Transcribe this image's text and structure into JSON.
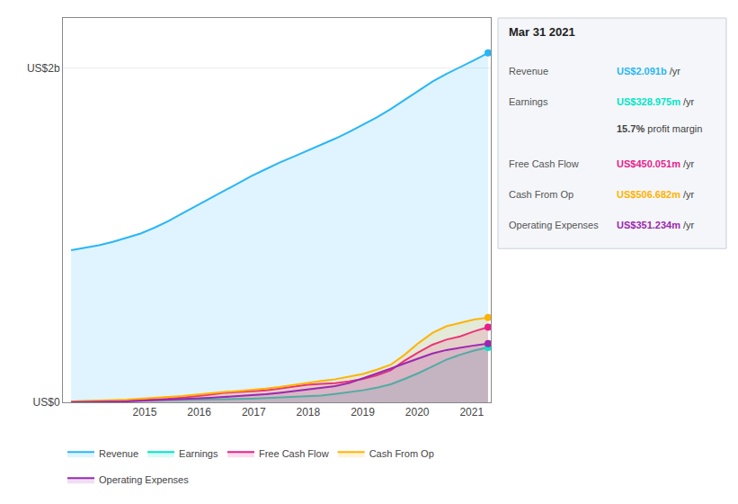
{
  "chart_data": {
    "type": "area",
    "title": "Mar 31 2021",
    "x": [
      2013.65,
      2013.905,
      2014.16,
      2014.415,
      2014.67,
      2014.925,
      2015.18,
      2015.435,
      2015.69,
      2015.945,
      2016.2,
      2016.455,
      2016.71,
      2016.965,
      2017.22,
      2017.475,
      2017.73,
      2017.985,
      2018.24,
      2018.495,
      2018.75,
      2019.005,
      2019.26,
      2019.515,
      2019.77,
      2020.025,
      2020.28,
      2020.535,
      2020.79,
      2021.045,
      2021.3
    ],
    "series": [
      {
        "name": "Revenue",
        "color": "#29b6f6",
        "values": [
          910,
          925,
          940,
          960,
          985,
          1010,
          1045,
          1085,
          1130,
          1175,
          1220,
          1265,
          1310,
          1355,
          1395,
          1435,
          1470,
          1505,
          1540,
          1578,
          1618,
          1660,
          1705,
          1755,
          1810,
          1865,
          1920,
          1965,
          2005,
          2048,
          2091
        ]
      },
      {
        "name": "Earnings",
        "color": "#00e5c8",
        "values": [
          5,
          6,
          7,
          8,
          9,
          10,
          11,
          12,
          13,
          14,
          16,
          18,
          20,
          22,
          25,
          28,
          32,
          36,
          40,
          50,
          60,
          72,
          88,
          108,
          140,
          175,
          215,
          255,
          285,
          310,
          329
        ]
      },
      {
        "name": "Free Cash Flow",
        "color": "#e91e8c",
        "values": [
          3,
          4,
          5,
          7,
          10,
          14,
          17,
          22,
          28,
          36,
          46,
          56,
          60,
          64,
          72,
          82,
          95,
          105,
          110,
          115,
          125,
          140,
          162,
          192,
          250,
          300,
          345,
          375,
          395,
          425,
          450
        ]
      },
      {
        "name": "Cash From Op",
        "color": "#ffb300",
        "values": [
          5,
          7,
          9,
          12,
          16,
          21,
          26,
          32,
          38,
          46,
          56,
          62,
          68,
          73,
          82,
          92,
          105,
          118,
          128,
          138,
          152,
          170,
          195,
          225,
          285,
          355,
          415,
          455,
          475,
          495,
          507
        ]
      },
      {
        "name": "Operating Expenses",
        "color": "#9c27b0",
        "values": [
          1,
          2,
          3,
          4,
          6,
          10,
          13,
          16,
          18,
          22,
          27,
          32,
          37,
          42,
          48,
          57,
          67,
          77,
          87,
          97,
          115,
          143,
          172,
          202,
          233,
          262,
          292,
          313,
          328,
          340,
          351
        ]
      }
    ],
    "xlim": [
      2013.5,
      2021.35
    ],
    "xticks": [
      2015,
      2016,
      2017,
      2018,
      2019,
      2020,
      2021
    ],
    "ylim": [
      0,
      2300
    ],
    "yticks": [
      {
        "value": 0,
        "label": "US$0"
      },
      {
        "value": 2000,
        "label": "US$2b"
      }
    ],
    "grid": true,
    "legend": "bottom",
    "annotations": [
      {
        "label": "Revenue",
        "text": "US$2.091b",
        "suffix": " /yr",
        "color": "#29b6f6"
      },
      {
        "label": "Earnings",
        "text": "US$328.975m",
        "suffix": " /yr",
        "color": "#00e5c8"
      },
      {
        "text": "15.7%",
        "suffix": " profit margin"
      },
      {
        "label": "Free Cash Flow",
        "text": "US$450.051m",
        "suffix": " /yr",
        "color": "#e91e8c"
      },
      {
        "label": "Cash From Op",
        "text": "US$506.682m",
        "suffix": " /yr",
        "color": "#ffb300"
      },
      {
        "label": "Operating Expenses",
        "text": "US$351.234m",
        "suffix": " /yr",
        "color": "#9c27b0"
      }
    ]
  }
}
